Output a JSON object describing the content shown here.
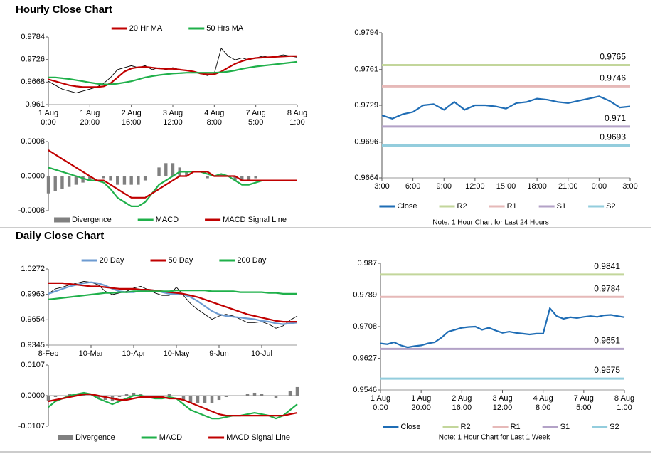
{
  "sections": [
    {
      "title": "Hourly Close Chart"
    },
    {
      "title": "Daily Close Chart"
    }
  ],
  "chart_data": [
    {
      "type": "line",
      "legend": "top",
      "categories": [
        "1 Aug\n0:00",
        null,
        null,
        null,
        null,
        null,
        "1 Aug\n20:00",
        null,
        null,
        null,
        null,
        null,
        "2 Aug\n16:00",
        null,
        null,
        null,
        null,
        null,
        "3 Aug\n12:00",
        null,
        null,
        null,
        null,
        null,
        "4 Aug\n8:00",
        null,
        null,
        null,
        null,
        null,
        "7 Aug\n5:00",
        null,
        null,
        null,
        null,
        null,
        "8 Aug\n1:00"
      ],
      "ylim": [
        0.961,
        0.9784
      ],
      "yticks": [
        0.961,
        0.9668,
        0.9726,
        0.9784
      ],
      "series": [
        {
          "color": "#000000",
          "values": [
            0.967,
            0.966,
            0.965,
            0.9645,
            0.964,
            0.9645,
            0.965,
            0.9655,
            0.9665,
            0.968,
            0.97,
            0.9705,
            0.971,
            0.9705,
            0.971,
            0.97,
            0.9705,
            0.97,
            0.9705,
            0.97,
            0.9698,
            0.9695,
            0.969,
            0.9685,
            0.969,
            0.9755,
            0.9735,
            0.9725,
            0.973,
            0.9725,
            0.973,
            0.9735,
            0.9732,
            0.9735,
            0.9738,
            0.9735,
            0.9732
          ]
        },
        {
          "name": "20 Hr MA",
          "color": "#c00000",
          "values": [
            0.9675,
            0.967,
            0.9665,
            0.966,
            0.9657,
            0.9655,
            0.9655,
            0.9655,
            0.9657,
            0.9665,
            0.968,
            0.9695,
            0.9703,
            0.9706,
            0.9707,
            0.9705,
            0.9703,
            0.9702,
            0.9702,
            0.97,
            0.9698,
            0.9695,
            0.969,
            0.9688,
            0.9688,
            0.9695,
            0.9705,
            0.9715,
            0.9722,
            0.9727,
            0.973,
            0.9731,
            0.9732,
            0.9733,
            0.9734,
            0.9735,
            0.9735
          ]
        },
        {
          "name": "50 Hrs MA",
          "color": "#1fb04a",
          "values": [
            0.968,
            0.968,
            0.9678,
            0.9676,
            0.9673,
            0.967,
            0.9667,
            0.9664,
            0.9662,
            0.9662,
            0.9664,
            0.9667,
            0.967,
            0.9675,
            0.968,
            0.9683,
            0.9686,
            0.9688,
            0.969,
            0.9691,
            0.9692,
            0.9692,
            0.9692,
            0.9692,
            0.9692,
            0.9693,
            0.9695,
            0.9698,
            0.9702,
            0.9705,
            0.9708,
            0.971,
            0.9712,
            0.9714,
            0.9716,
            0.9718,
            0.972
          ]
        }
      ]
    },
    {
      "type": "line",
      "legend": "bottom",
      "ylim": [
        -0.0008,
        0.0008
      ],
      "yticks": [
        -0.0008,
        {
          "value": 0,
          "label": "0.0000"
        },
        0.0008
      ],
      "series": [
        {
          "name": "Divergence",
          "type": "bar",
          "color": "#808080",
          "values": [
            -0.0004,
            -0.00035,
            -0.0003,
            -0.00025,
            -0.0002,
            -0.00015,
            -0.0001,
            0,
            -5e-05,
            -0.0001,
            -0.0002,
            -0.0002,
            -0.0002,
            -0.0002,
            -0.0001,
            0,
            0.0002,
            0.0003,
            0.0003,
            0.0002,
            0.0001,
            0,
            0,
            -5e-05,
            0,
            5e-05,
            0,
            -0.0001,
            -0.0001,
            -0.0001,
            -5e-05,
            0,
            0,
            0,
            0,
            0,
            0
          ]
        },
        {
          "name": "MACD",
          "color": "#1fb04a",
          "values": [
            0.0002,
            0.00015,
            0.0001,
            5e-05,
            0,
            -5e-05,
            -0.0001,
            -0.0001,
            -0.00015,
            -0.0003,
            -0.0005,
            -0.0006,
            -0.0007,
            -0.0007,
            -0.0006,
            -0.0004,
            -0.0002,
            -0.0001,
            0,
            0.0001,
            0.0001,
            0.0001,
            0.0001,
            5e-05,
            0,
            5e-05,
            0,
            -0.0001,
            -0.0002,
            -0.0002,
            -0.00015,
            -0.0001,
            -0.0001,
            -0.0001,
            -0.0001,
            -0.0001,
            -0.0001
          ]
        },
        {
          "name": "MACD Signal Line",
          "color": "#c00000",
          "values": [
            0.0006,
            0.0005,
            0.0004,
            0.0003,
            0.0002,
            0.0001,
            0,
            -0.0001,
            -0.0001,
            -0.0002,
            -0.0003,
            -0.0004,
            -0.0005,
            -0.0005,
            -0.0005,
            -0.0004,
            -0.0003,
            -0.0002,
            -0.0001,
            0,
            0,
            0.0001,
            0.0001,
            0.0001,
            0,
            0,
            0,
            0,
            -0.0001,
            -0.0001,
            -0.0001,
            -0.0001,
            -0.0001,
            -0.0001,
            -0.0001,
            -0.0001,
            -0.0001
          ]
        }
      ]
    },
    {
      "type": "line",
      "legend": "bottom",
      "note": "Note: 1 Hour Chart for Last 24 Hours",
      "categories": [
        "3:00",
        null,
        null,
        "6:00",
        null,
        null,
        "9:00",
        null,
        null,
        "12:00",
        null,
        null,
        "15:00",
        null,
        null,
        "18:00",
        null,
        null,
        "21:00",
        null,
        null,
        "0:00",
        null,
        null,
        "3:00"
      ],
      "ylim": [
        0.9664,
        0.9794
      ],
      "yticks": [
        0.9664,
        0.9696,
        0.9729,
        0.9761,
        0.9794
      ],
      "series": [
        {
          "name": "Close",
          "color": "#1f6db5",
          "values": [
            0.972,
            0.9717,
            0.9721,
            0.9723,
            0.9729,
            0.973,
            0.9725,
            0.9732,
            0.9725,
            0.9729,
            0.9729,
            0.9728,
            0.9726,
            0.9731,
            0.9732,
            0.9735,
            0.9734,
            0.9732,
            0.9731,
            0.9733,
            0.9735,
            0.9737,
            0.9733,
            0.9727,
            0.9728
          ]
        }
      ],
      "levels": [
        {
          "name": "R2",
          "color": "#c3d69b",
          "value": 0.9765
        },
        {
          "name": "R1",
          "color": "#e6b9b8",
          "value": 0.9746
        },
        {
          "name": "S1",
          "color": "#b3a2c7",
          "value": 0.971
        },
        {
          "name": "S2",
          "color": "#93cddd",
          "value": 0.9693
        }
      ]
    },
    {
      "type": "line",
      "legend": "top",
      "categories": [
        "8-Feb",
        null,
        null,
        null,
        null,
        null,
        "10-Mar",
        null,
        null,
        null,
        null,
        null,
        "10-Apr",
        null,
        null,
        null,
        null,
        null,
        "10-May",
        null,
        null,
        null,
        null,
        null,
        "9-Jun",
        null,
        null,
        null,
        null,
        null,
        "10-Jul",
        null,
        null,
        null,
        null,
        null
      ],
      "ylim": [
        0.9345,
        1.0272
      ],
      "yticks": [
        0.9345,
        0.9654,
        0.9963,
        1.0272
      ],
      "series": [
        {
          "color": "#000000",
          "values": [
            0.997,
            1.003,
            1.005,
            1.008,
            1.01,
            1.012,
            1.011,
            1.008,
            1.0,
            0.996,
            0.998,
            1.0,
            1.004,
            1.006,
            1.002,
            0.998,
            0.995,
            0.995,
            1.005,
            0.995,
            0.985,
            0.978,
            0.972,
            0.966,
            0.97,
            0.972,
            0.97,
            0.966,
            0.962,
            0.962,
            0.963,
            0.96,
            0.955,
            0.958,
            0.965,
            0.97
          ]
        },
        {
          "name": "20 Day",
          "color": "#6d9bd1",
          "values": [
            0.997,
            1.0,
            1.003,
            1.006,
            1.008,
            1.01,
            1.011,
            1.01,
            1.007,
            1.003,
            1.0,
            0.999,
            0.999,
            1.001,
            1.002,
            1.001,
            0.999,
            0.997,
            0.997,
            0.996,
            0.993,
            0.988,
            0.982,
            0.976,
            0.972,
            0.97,
            0.969,
            0.968,
            0.967,
            0.966,
            0.964,
            0.963,
            0.961,
            0.96,
            0.961,
            0.962
          ]
        },
        {
          "name": "50 Day",
          "color": "#c00000",
          "values": [
            1.01,
            1.01,
            1.01,
            1.009,
            1.008,
            1.007,
            1.006,
            1.006,
            1.005,
            1.004,
            1.003,
            1.003,
            1.003,
            1.002,
            1.002,
            1.001,
            1.0,
            0.999,
            0.998,
            0.997,
            0.995,
            0.993,
            0.99,
            0.987,
            0.984,
            0.981,
            0.978,
            0.975,
            0.972,
            0.97,
            0.968,
            0.966,
            0.964,
            0.963,
            0.963,
            0.963
          ]
        },
        {
          "name": "200 Day",
          "color": "#1fb04a",
          "values": [
            0.99,
            0.991,
            0.992,
            0.993,
            0.994,
            0.995,
            0.996,
            0.997,
            0.998,
            0.998,
            0.999,
            0.999,
            1.0,
            1.0,
            1.0,
            1.0,
            1.0,
            1.0,
            1.001,
            1.001,
            1.001,
            1.001,
            1.001,
            1.0,
            1.0,
            1.0,
            1.0,
            0.999,
            0.999,
            0.999,
            0.999,
            0.998,
            0.998,
            0.997,
            0.997,
            0.997
          ]
        }
      ]
    },
    {
      "type": "line",
      "legend": "bottom",
      "ylim": [
        -0.0107,
        0.0107
      ],
      "yticks": [
        -0.0107,
        {
          "value": 0,
          "label": "0.0000"
        },
        0.0107
      ],
      "series": [
        {
          "name": "Divergence",
          "type": "bar",
          "color": "#808080",
          "values": [
            -0.002,
            -0.0005,
            0,
            0.0005,
            0.0005,
            0.0005,
            0,
            -0.001,
            -0.0015,
            -0.002,
            -0.0005,
            0.0005,
            0.001,
            0.0005,
            0,
            -0.0005,
            -0.0005,
            0.0005,
            0,
            -0.0015,
            -0.0025,
            -0.0025,
            -0.0025,
            -0.0025,
            -0.0015,
            -0.0005,
            0,
            0,
            0.0005,
            0.001,
            0.0005,
            0,
            -0.001,
            0,
            0.0015,
            0.003
          ]
        },
        {
          "name": "MACD",
          "color": "#1fb04a",
          "values": [
            -0.004,
            -0.002,
            -0.001,
            0,
            0.0005,
            0.001,
            0.0005,
            -0.001,
            -0.002,
            -0.003,
            -0.002,
            -0.001,
            0,
            0,
            -0.0005,
            -0.001,
            -0.001,
            -0.0005,
            -0.001,
            -0.003,
            -0.005,
            -0.006,
            -0.007,
            -0.008,
            -0.008,
            -0.0075,
            -0.007,
            -0.007,
            -0.0065,
            -0.006,
            -0.0065,
            -0.007,
            -0.008,
            -0.007,
            -0.005,
            -0.003
          ]
        },
        {
          "name": "MACD Signal Line",
          "color": "#c00000",
          "values": [
            -0.002,
            -0.0015,
            -0.001,
            -0.0005,
            0,
            0.0005,
            0.0005,
            0,
            -0.0005,
            -0.001,
            -0.0015,
            -0.0015,
            -0.001,
            -0.0005,
            -0.0005,
            -0.0005,
            -0.0005,
            -0.001,
            -0.001,
            -0.0015,
            -0.0025,
            -0.0035,
            -0.0045,
            -0.0055,
            -0.0065,
            -0.007,
            -0.007,
            -0.007,
            -0.007,
            -0.007,
            -0.007,
            -0.007,
            -0.007,
            -0.007,
            -0.0065,
            -0.006
          ]
        }
      ]
    },
    {
      "type": "line",
      "legend": "bottom",
      "note": "Note: 1 Hour Chart for Last 1 Week",
      "categories": [
        "1 Aug\n0:00",
        null,
        null,
        null,
        null,
        null,
        "1 Aug\n20:00",
        null,
        null,
        null,
        null,
        null,
        "2 Aug\n16:00",
        null,
        null,
        null,
        null,
        null,
        "3 Aug\n12:00",
        null,
        null,
        null,
        null,
        null,
        "4 Aug\n8:00",
        null,
        null,
        null,
        null,
        null,
        "7 Aug\n5:00",
        null,
        null,
        null,
        null,
        null,
        "8 Aug\n1:00"
      ],
      "ylim": [
        0.9546,
        0.987
      ],
      "yticks": [
        0.9546,
        0.9627,
        0.9708,
        0.9789,
        0.987
      ],
      "series": [
        {
          "name": "Close",
          "color": "#1f6db5",
          "values": [
            0.9665,
            0.9663,
            0.9668,
            0.966,
            0.9655,
            0.9658,
            0.966,
            0.9665,
            0.9668,
            0.968,
            0.9695,
            0.97,
            0.9705,
            0.9707,
            0.9708,
            0.97,
            0.9705,
            0.9698,
            0.9692,
            0.9695,
            0.9692,
            0.969,
            0.9688,
            0.969,
            0.969,
            0.9755,
            0.9735,
            0.9728,
            0.9732,
            0.973,
            0.9733,
            0.9735,
            0.9733,
            0.9737,
            0.9738,
            0.9735,
            0.9732
          ]
        }
      ],
      "levels": [
        {
          "name": "R2",
          "color": "#c3d69b",
          "value": 0.9841
        },
        {
          "name": "R1",
          "color": "#e6b9b8",
          "value": 0.9784
        },
        {
          "name": "S1",
          "color": "#b3a2c7",
          "value": 0.9651
        },
        {
          "name": "S2",
          "color": "#93cddd",
          "value": 0.9575
        }
      ]
    }
  ]
}
